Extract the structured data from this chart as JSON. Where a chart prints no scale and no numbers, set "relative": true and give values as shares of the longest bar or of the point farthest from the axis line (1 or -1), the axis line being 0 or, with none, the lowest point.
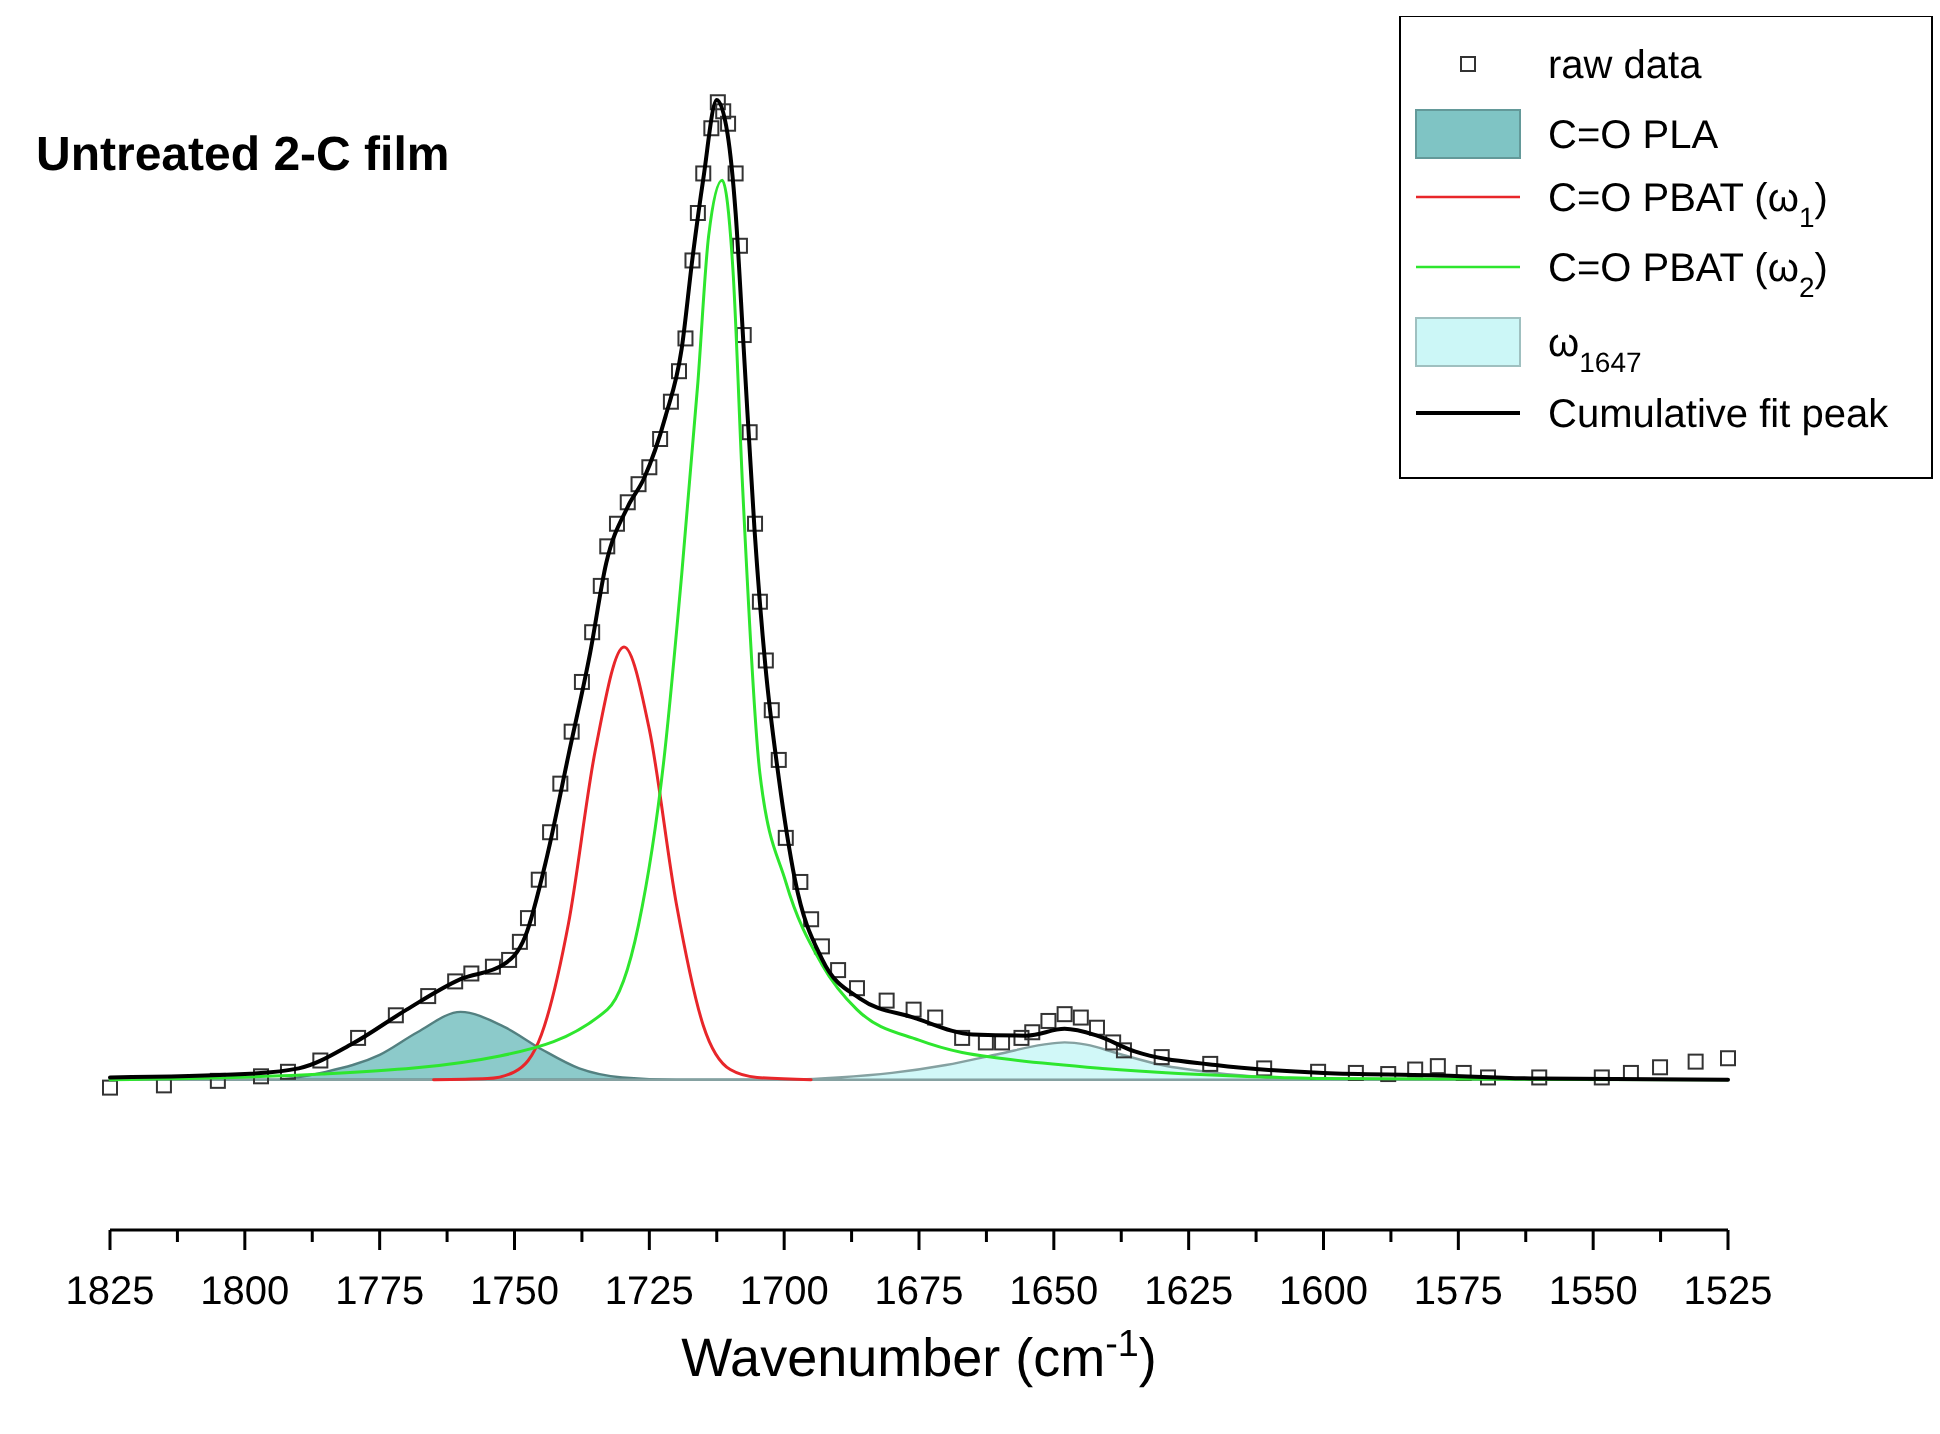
{
  "chart_data": {
    "type": "line",
    "title": "Untreated 2-C film",
    "xlabel": "Wavenumber (cm$^{-1}$)",
    "relative": true,
    "legend": "top right",
    "tick_labels": "x",
    "xlim": [
      1825,
      1525
    ],
    "xticks": [
      1825,
      {
        "value": 1812.5,
        "label": null
      },
      1800,
      {
        "value": 1787.5,
        "label": null
      },
      1775,
      {
        "value": 1762.5,
        "label": null
      },
      1750,
      {
        "value": 1737.5,
        "label": null
      },
      1725,
      {
        "value": 1712.5,
        "label": null
      },
      1700,
      {
        "value": 1687.5,
        "label": null
      },
      1675,
      {
        "value": 1662.5,
        "label": null
      },
      1650,
      {
        "value": 1637.5,
        "label": null
      },
      1625,
      {
        "value": 1612.5,
        "label": null
      },
      1600,
      {
        "value": 1587.5,
        "label": null
      },
      1575,
      {
        "value": 1562.5,
        "label": null
      },
      1550,
      {
        "value": 1537.5,
        "label": null
      },
      1525
    ],
    "series": [
      {
        "name": "raw data",
        "type": "scatter",
        "marker": "square",
        "color": "#333333",
        "x": [
          1825,
          1815,
          1805,
          1797,
          1792,
          1786,
          1779,
          1772,
          1766,
          1761,
          1758,
          1754,
          1751,
          1749,
          1747.5,
          1745.5,
          1743.4,
          1741.5,
          1739.4,
          1737.5,
          1735.6,
          1734,
          1732.8,
          1731,
          1729,
          1727,
          1725,
          1723,
          1721,
          1719.5,
          1718.3,
          1717,
          1716,
          1715,
          1713.5,
          1712.3,
          1711.3,
          1710.4,
          1709,
          1708.2,
          1707.5,
          1706.4,
          1705.4,
          1704.5,
          1703.4,
          1702.3,
          1701,
          1699.7,
          1697,
          1695,
          1693,
          1690,
          1686.5,
          1681,
          1676,
          1672,
          1667,
          1662.6,
          1659.6,
          1656,
          1654,
          1651,
          1648,
          1645,
          1642,
          1639,
          1637,
          1630,
          1621,
          1611,
          1601,
          1594,
          1588,
          1583,
          1578.8,
          1574,
          1569.5,
          1560,
          1548.4,
          1543,
          1537.6,
          1531,
          1525
        ],
        "values": [
          0.126,
          0.128,
          0.132,
          0.136,
          0.14,
          0.15,
          0.17,
          0.19,
          0.207,
          0.22,
          0.227,
          0.233,
          0.239,
          0.255,
          0.276,
          0.31,
          0.352,
          0.395,
          0.441,
          0.485,
          0.529,
          0.57,
          0.605,
          0.625,
          0.644,
          0.66,
          0.675,
          0.7,
          0.733,
          0.76,
          0.789,
          0.858,
          0.9,
          0.935,
          0.975,
          0.998,
          0.99,
          0.979,
          0.935,
          0.871,
          0.792,
          0.706,
          0.625,
          0.556,
          0.504,
          0.46,
          0.416,
          0.347,
          0.308,
          0.275,
          0.251,
          0.23,
          0.214,
          0.203,
          0.195,
          0.188,
          0.17,
          0.166,
          0.166,
          0.17,
          0.175,
          0.185,
          0.191,
          0.188,
          0.179,
          0.166,
          0.159,
          0.153,
          0.147,
          0.143,
          0.14,
          0.139,
          0.138,
          0.142,
          0.145,
          0.139,
          0.135,
          0.135,
          0.135,
          0.139,
          0.144,
          0.149,
          0.152
        ]
      },
      {
        "name": "C=O PLA",
        "type": "area",
        "color": "#7fc4c4",
        "x": [
          1825,
          1795,
          1785,
          1775,
          1768,
          1760,
          1752,
          1745,
          1738,
          1730,
          1720,
          1525
        ],
        "values": [
          0.133,
          0.133,
          0.14,
          0.155,
          0.175,
          0.193,
          0.18,
          0.16,
          0.143,
          0.135,
          0.133,
          0.133
        ]
      },
      {
        "name": "C=O PBAT (ω$_{1}$)",
        "color": "#e8262a",
        "x": [
          1765,
          1755,
          1750,
          1745,
          1740,
          1735,
          1729.7,
          1725,
          1720,
          1715,
          1710,
          1705,
          1695
        ],
        "values": [
          0.133,
          0.134,
          0.14,
          0.173,
          0.271,
          0.425,
          0.516,
          0.443,
          0.289,
          0.181,
          0.142,
          0.135,
          0.133
        ]
      },
      {
        "name": "C=O PBAT (ω$_{2}$)",
        "color": "#2ee62e",
        "x": [
          1825,
          1785.7,
          1752.7,
          1732.8,
          1727,
          1722.3,
          1719,
          1716,
          1714,
          1711.5,
          1709.5,
          1707.7,
          1704.5,
          1699.7,
          1693,
          1686.5,
          1675,
          1667,
          1660,
          1641,
          1608,
          1600,
          1525
        ],
        "values": [
          0.133,
          0.138,
          0.154,
          0.195,
          0.27,
          0.416,
          0.58,
          0.75,
          0.88,
          0.929,
          0.85,
          0.657,
          0.404,
          0.308,
          0.235,
          0.195,
          0.168,
          0.157,
          0.152,
          0.143,
          0.135,
          0.134,
          0.133
        ]
      },
      {
        "name": "ω$_{1647}$",
        "type": "area",
        "color": "#ccf7f7",
        "x": [
          1825,
          1700,
          1690,
          1680,
          1670,
          1660,
          1652,
          1648,
          1644,
          1638,
          1630,
          1620,
          1610,
          1600,
          1525
        ],
        "values": [
          0.133,
          0.133,
          0.135,
          0.139,
          0.146,
          0.156,
          0.164,
          0.166,
          0.164,
          0.156,
          0.146,
          0.139,
          0.135,
          0.133,
          0.133
        ]
      },
      {
        "name": "Cumulative fit peak",
        "color": "#000000",
        "x": [
          1825,
          1800,
          1790,
          1780,
          1770,
          1760,
          1752,
          1748,
          1744,
          1740,
          1736,
          1733,
          1729,
          1726,
          1722,
          1719,
          1717,
          1715,
          1712.5,
          1710.5,
          1709,
          1707.5,
          1705.5,
          1703.5,
          1701,
          1698,
          1693,
          1686,
          1676,
          1665,
          1655,
          1648,
          1642,
          1635,
          1620,
          1600,
          1580,
          1560,
          1525
        ],
        "values": [
          0.135,
          0.138,
          0.143,
          0.165,
          0.195,
          0.222,
          0.235,
          0.26,
          0.33,
          0.42,
          0.51,
          0.59,
          0.64,
          0.665,
          0.72,
          0.78,
          0.86,
          0.93,
          1.0,
          0.97,
          0.9,
          0.78,
          0.62,
          0.5,
          0.4,
          0.31,
          0.24,
          0.205,
          0.188,
          0.173,
          0.172,
          0.178,
          0.172,
          0.158,
          0.146,
          0.139,
          0.137,
          0.134,
          0.133
        ]
      }
    ]
  }
}
